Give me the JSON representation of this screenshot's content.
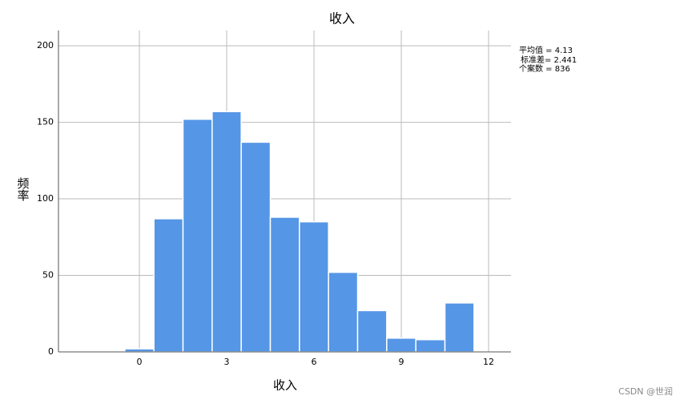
{
  "chart_data": {
    "type": "histogram",
    "title": "收入",
    "x_label": "收入",
    "y_label": "频率",
    "bins": [
      -0.5,
      0.5,
      1.5,
      2.5,
      3.5,
      4.5,
      5.5,
      6.5,
      7.5,
      8.5,
      9.5,
      10.5,
      11.5
    ],
    "values": [
      2,
      87,
      152,
      157,
      137,
      88,
      85,
      52,
      27,
      9,
      8,
      32
    ],
    "color": "#5596e6",
    "xlim": [
      -2.78,
      12.77
    ],
    "xticks": [
      0,
      3,
      6,
      9,
      12
    ],
    "ylim": [
      0,
      210
    ],
    "yticks": [
      0,
      50,
      100,
      150,
      200
    ],
    "grid": true,
    "stats": [
      "平均值 = 4.13",
      "标准差= 2.441",
      "个案数 = 836"
    ],
    "watermark": "CSDN @世润"
  }
}
